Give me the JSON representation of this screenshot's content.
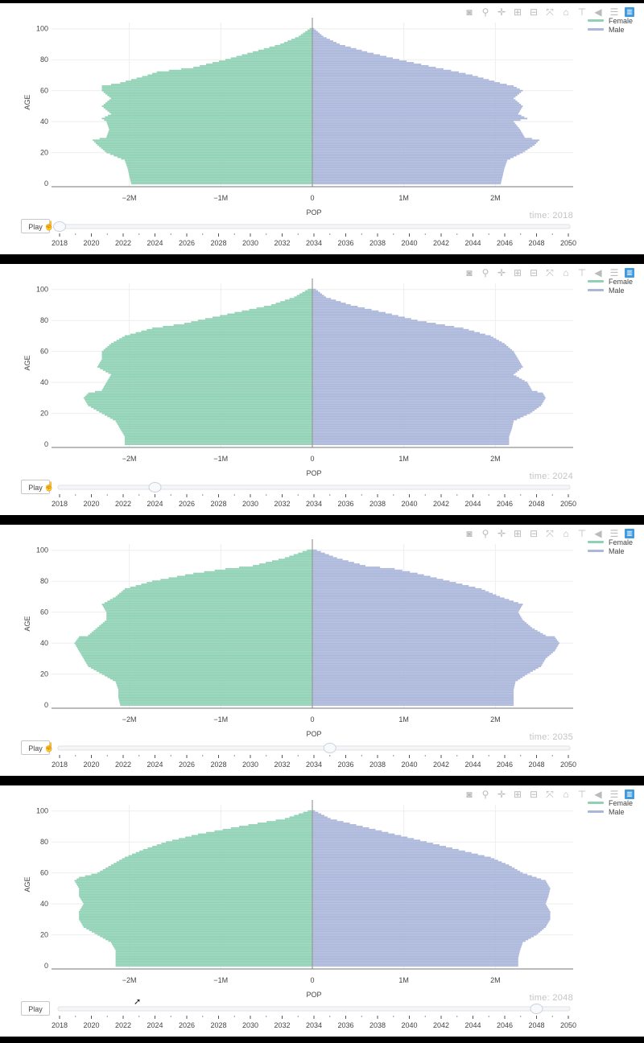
{
  "ui": {
    "play_label": "Play",
    "time_prefix": "time: ",
    "modebar_icons": [
      "camera-icon",
      "zoom-icon",
      "pan-icon",
      "zoom-in-icon",
      "zoom-out-icon",
      "autoscale-icon",
      "reset-axes-icon",
      "spike-lines-icon",
      "hover-closest-icon",
      "hover-compare-icon",
      "plotly-logo-icon"
    ],
    "legend": [
      {
        "label": "Female",
        "color": "#8fd1b4"
      },
      {
        "label": "Male",
        "color": "#aab6da"
      }
    ],
    "slider_years": [
      "2018",
      "2020",
      "2022",
      "2024",
      "2026",
      "2028",
      "2030",
      "2032",
      "2034",
      "2036",
      "2038",
      "2040",
      "2042",
      "2044",
      "2046",
      "2048",
      "2050"
    ]
  },
  "chart_data": [
    {
      "type": "bar",
      "orientation": "horizontal",
      "time": "2018",
      "xlabel": "POP",
      "ylabel": "AGE",
      "x_ticks": [
        "−2M",
        "−1M",
        "0",
        "1M",
        "2M"
      ],
      "y_ticks": [
        "0",
        "20",
        "40",
        "60",
        "80",
        "100"
      ],
      "ages": [
        0,
        5,
        10,
        15,
        20,
        25,
        28,
        30,
        35,
        40,
        42,
        45,
        50,
        55,
        60,
        63,
        65,
        70,
        72,
        75,
        80,
        85,
        90,
        95,
        100
      ],
      "series": [
        {
          "name": "Female",
          "values": [
            -1.98,
            -2.0,
            -2.02,
            -2.05,
            -2.25,
            -2.35,
            -2.4,
            -2.25,
            -2.22,
            -2.25,
            -2.3,
            -2.2,
            -2.3,
            -2.2,
            -2.3,
            -2.3,
            -2.1,
            -1.8,
            -1.7,
            -1.3,
            -0.95,
            -0.65,
            -0.35,
            -0.15,
            -0.03
          ]
        },
        {
          "name": "Male",
          "values": [
            2.06,
            2.08,
            2.1,
            2.13,
            2.3,
            2.43,
            2.48,
            2.32,
            2.27,
            2.2,
            2.35,
            2.25,
            2.3,
            2.2,
            2.3,
            2.2,
            2.05,
            1.75,
            1.6,
            1.35,
            0.95,
            0.6,
            0.3,
            0.12,
            0.02
          ]
        }
      ],
      "xlim": [
        -2.85,
        2.85
      ],
      "ylim": [
        -2,
        104
      ]
    },
    {
      "type": "bar",
      "orientation": "horizontal",
      "time": "2024",
      "xlabel": "POP",
      "ylabel": "AGE",
      "x_ticks": [
        "−2M",
        "−1M",
        "0",
        "1M",
        "2M"
      ],
      "y_ticks": [
        "0",
        "20",
        "40",
        "60",
        "80",
        "100"
      ],
      "ages": [
        0,
        5,
        10,
        15,
        20,
        25,
        30,
        33,
        35,
        40,
        45,
        50,
        55,
        60,
        65,
        70,
        75,
        78,
        80,
        85,
        90,
        95,
        100
      ],
      "series": [
        {
          "name": "Female",
          "values": [
            -2.05,
            -2.05,
            -2.1,
            -2.15,
            -2.3,
            -2.45,
            -2.5,
            -2.45,
            -2.3,
            -2.25,
            -2.2,
            -2.35,
            -2.3,
            -2.3,
            -2.2,
            -2.05,
            -1.75,
            -1.4,
            -1.25,
            -0.85,
            -0.45,
            -0.2,
            -0.05
          ]
        },
        {
          "name": "Male",
          "values": [
            2.15,
            2.15,
            2.18,
            2.2,
            2.38,
            2.5,
            2.55,
            2.52,
            2.4,
            2.35,
            2.2,
            2.3,
            2.25,
            2.2,
            2.1,
            1.95,
            1.65,
            1.35,
            1.15,
            0.8,
            0.42,
            0.15,
            0.04
          ]
        }
      ],
      "xlim": [
        -2.85,
        2.85
      ],
      "ylim": [
        -2,
        104
      ]
    },
    {
      "type": "bar",
      "orientation": "horizontal",
      "time": "2035",
      "xlabel": "POP",
      "ylabel": "AGE",
      "x_ticks": [
        "−2M",
        "−1M",
        "0",
        "1M",
        "2M"
      ],
      "y_ticks": [
        "0",
        "20",
        "40",
        "60",
        "80",
        "100"
      ],
      "ages": [
        0,
        5,
        10,
        15,
        20,
        25,
        30,
        35,
        40,
        44,
        45,
        50,
        55,
        60,
        65,
        70,
        75,
        80,
        85,
        88,
        90,
        95,
        100
      ],
      "series": [
        {
          "name": "Female",
          "values": [
            -2.1,
            -2.12,
            -2.12,
            -2.15,
            -2.3,
            -2.45,
            -2.5,
            -2.55,
            -2.6,
            -2.55,
            -2.45,
            -2.35,
            -2.25,
            -2.25,
            -2.3,
            -2.15,
            -2.05,
            -1.75,
            -1.3,
            -0.95,
            -0.65,
            -0.3,
            -0.06
          ]
        },
        {
          "name": "Male",
          "values": [
            2.2,
            2.2,
            2.2,
            2.22,
            2.35,
            2.5,
            2.55,
            2.65,
            2.7,
            2.65,
            2.55,
            2.4,
            2.3,
            2.25,
            2.3,
            2.05,
            1.85,
            1.5,
            1.15,
            0.9,
            0.58,
            0.27,
            0.05
          ]
        }
      ],
      "xlim": [
        -2.85,
        2.85
      ],
      "ylim": [
        -2,
        104
      ]
    },
    {
      "type": "bar",
      "orientation": "horizontal",
      "time": "2048",
      "xlabel": "POP",
      "ylabel": "AGE",
      "x_ticks": [
        "−2M",
        "−1M",
        "0",
        "1M",
        "2M"
      ],
      "y_ticks": [
        "0",
        "20",
        "40",
        "60",
        "80",
        "100"
      ],
      "ages": [
        0,
        5,
        10,
        15,
        20,
        25,
        30,
        35,
        40,
        45,
        50,
        55,
        57,
        60,
        65,
        70,
        75,
        80,
        85,
        90,
        95,
        100
      ],
      "series": [
        {
          "name": "Female",
          "values": [
            -2.15,
            -2.15,
            -2.15,
            -2.2,
            -2.35,
            -2.5,
            -2.55,
            -2.55,
            -2.5,
            -2.55,
            -2.55,
            -2.6,
            -2.55,
            -2.35,
            -2.2,
            -2.05,
            -1.85,
            -1.6,
            -1.25,
            -0.8,
            -0.3,
            -0.05
          ]
        },
        {
          "name": "Male",
          "values": [
            2.25,
            2.25,
            2.27,
            2.3,
            2.45,
            2.55,
            2.6,
            2.6,
            2.55,
            2.58,
            2.6,
            2.55,
            2.45,
            2.3,
            2.15,
            1.95,
            1.6,
            1.25,
            0.9,
            0.55,
            0.2,
            0.03
          ]
        }
      ],
      "xlim": [
        -2.85,
        2.85
      ],
      "ylim": [
        -2,
        104
      ]
    }
  ]
}
